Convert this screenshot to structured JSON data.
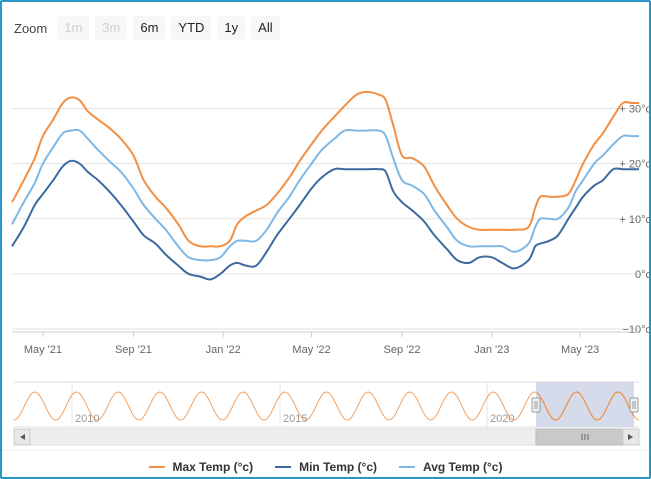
{
  "zoom": {
    "label": "Zoom",
    "buttons": [
      {
        "label": "1m",
        "enabled": false
      },
      {
        "label": "3m",
        "enabled": false
      },
      {
        "label": "6m",
        "enabled": true
      },
      {
        "label": "YTD",
        "enabled": true
      },
      {
        "label": "1y",
        "enabled": true
      },
      {
        "label": "All",
        "enabled": true
      }
    ]
  },
  "colors": {
    "max": "#f28f43",
    "min": "#3d6a9e",
    "avg": "#7db8e6",
    "navigator_mask": "#c7cfe3",
    "frame": "#2a96c8"
  },
  "chart_data": {
    "type": "line",
    "x_ticks": [
      "May '21",
      "Sep '21",
      "Jan '22",
      "May '22",
      "Sep '22",
      "Jan '23",
      "May '23"
    ],
    "y_ticks": [
      "−10°c",
      "0°c",
      "+ 10°c",
      "+ 20°c",
      "+ 30°c"
    ],
    "ylim": [
      -10,
      33
    ],
    "grid": true,
    "legend_position": "bottom-center",
    "series": [
      {
        "name": "Max Temp (°c)",
        "points": [
          [
            "2021-03-20",
            13
          ],
          [
            "2021-04-05",
            17
          ],
          [
            "2021-04-20",
            21
          ],
          [
            "2021-05-01",
            25
          ],
          [
            "2021-05-15",
            28
          ],
          [
            "2021-05-28",
            31
          ],
          [
            "2021-06-08",
            32
          ],
          [
            "2021-06-20",
            31.5
          ],
          [
            "2021-07-01",
            29.5
          ],
          [
            "2021-07-15",
            28
          ],
          [
            "2021-07-30",
            26.5
          ],
          [
            "2021-08-15",
            24.5
          ],
          [
            "2021-09-01",
            21.5
          ],
          [
            "2021-09-15",
            17
          ],
          [
            "2021-10-01",
            14
          ],
          [
            "2021-10-15",
            12
          ],
          [
            "2021-11-01",
            9
          ],
          [
            "2021-11-15",
            6
          ],
          [
            "2021-12-01",
            5
          ],
          [
            "2021-12-15",
            5
          ],
          [
            "2021-12-28",
            5
          ],
          [
            "2022-01-10",
            6
          ],
          [
            "2022-01-20",
            9
          ],
          [
            "2022-02-01",
            10.5
          ],
          [
            "2022-02-15",
            11.5
          ],
          [
            "2022-03-01",
            12.5
          ],
          [
            "2022-03-15",
            14.5
          ],
          [
            "2022-04-01",
            17.5
          ],
          [
            "2022-04-15",
            20.5
          ],
          [
            "2022-05-01",
            23.5
          ],
          [
            "2022-05-15",
            26
          ],
          [
            "2022-06-01",
            28.5
          ],
          [
            "2022-06-15",
            30.5
          ],
          [
            "2022-07-01",
            32.5
          ],
          [
            "2022-07-15",
            33
          ],
          [
            "2022-08-01",
            32.5
          ],
          [
            "2022-08-10",
            31.5
          ],
          [
            "2022-08-20",
            27
          ],
          [
            "2022-09-01",
            21.5
          ],
          [
            "2022-09-15",
            21
          ],
          [
            "2022-10-01",
            19.5
          ],
          [
            "2022-10-15",
            16
          ],
          [
            "2022-11-01",
            12.5
          ],
          [
            "2022-11-15",
            10
          ],
          [
            "2022-12-01",
            8.5
          ],
          [
            "2022-12-15",
            8
          ],
          [
            "2023-01-01",
            8
          ],
          [
            "2023-01-15",
            8
          ],
          [
            "2023-02-01",
            8
          ],
          [
            "2023-02-20",
            8.5
          ],
          [
            "2023-03-01",
            12
          ],
          [
            "2023-03-08",
            14
          ],
          [
            "2023-03-20",
            14
          ],
          [
            "2023-04-01",
            14
          ],
          [
            "2023-04-15",
            14.5
          ],
          [
            "2023-04-25",
            17
          ],
          [
            "2023-05-05",
            20
          ],
          [
            "2023-05-20",
            23.5
          ],
          [
            "2023-06-01",
            25.5
          ],
          [
            "2023-06-15",
            28.5
          ],
          [
            "2023-06-28",
            31
          ],
          [
            "2023-07-10",
            31
          ],
          [
            "2023-07-20",
            31
          ]
        ]
      },
      {
        "name": "Min Temp (°c)",
        "points": [
          [
            "2021-03-20",
            5
          ],
          [
            "2021-04-05",
            8.5
          ],
          [
            "2021-04-20",
            12.5
          ],
          [
            "2021-05-01",
            14.5
          ],
          [
            "2021-05-15",
            17
          ],
          [
            "2021-05-28",
            19.5
          ],
          [
            "2021-06-08",
            20.5
          ],
          [
            "2021-06-20",
            20
          ],
          [
            "2021-07-01",
            18.5
          ],
          [
            "2021-07-15",
            17
          ],
          [
            "2021-07-30",
            15
          ],
          [
            "2021-08-15",
            12.5
          ],
          [
            "2021-09-01",
            9.5
          ],
          [
            "2021-09-15",
            7
          ],
          [
            "2021-10-01",
            5.5
          ],
          [
            "2021-10-15",
            3.5
          ],
          [
            "2021-11-01",
            1.5
          ],
          [
            "2021-11-15",
            0
          ],
          [
            "2021-12-01",
            -0.5
          ],
          [
            "2021-12-15",
            -1
          ],
          [
            "2021-12-28",
            0
          ],
          [
            "2022-01-10",
            1.5
          ],
          [
            "2022-01-20",
            2
          ],
          [
            "2022-02-01",
            1.5
          ],
          [
            "2022-02-15",
            1.5
          ],
          [
            "2022-03-01",
            4
          ],
          [
            "2022-03-15",
            7
          ],
          [
            "2022-04-01",
            10
          ],
          [
            "2022-04-15",
            12.5
          ],
          [
            "2022-05-01",
            15.5
          ],
          [
            "2022-05-15",
            17.5
          ],
          [
            "2022-06-01",
            19
          ],
          [
            "2022-06-15",
            19
          ],
          [
            "2022-07-01",
            19
          ],
          [
            "2022-07-15",
            19
          ],
          [
            "2022-08-01",
            19
          ],
          [
            "2022-08-10",
            18.5
          ],
          [
            "2022-08-20",
            15
          ],
          [
            "2022-09-01",
            13
          ],
          [
            "2022-09-15",
            11.5
          ],
          [
            "2022-10-01",
            9.5
          ],
          [
            "2022-10-15",
            7
          ],
          [
            "2022-11-01",
            4.5
          ],
          [
            "2022-11-15",
            2.5
          ],
          [
            "2022-12-01",
            2
          ],
          [
            "2022-12-15",
            3
          ],
          [
            "2023-01-01",
            3
          ],
          [
            "2023-01-15",
            2
          ],
          [
            "2023-02-01",
            1
          ],
          [
            "2023-02-20",
            2.5
          ],
          [
            "2023-03-01",
            5
          ],
          [
            "2023-03-08",
            5.5
          ],
          [
            "2023-03-20",
            6
          ],
          [
            "2023-04-01",
            7
          ],
          [
            "2023-04-15",
            10
          ],
          [
            "2023-04-25",
            12
          ],
          [
            "2023-05-05",
            14
          ],
          [
            "2023-05-20",
            16
          ],
          [
            "2023-06-01",
            17
          ],
          [
            "2023-06-15",
            19
          ],
          [
            "2023-06-28",
            19
          ],
          [
            "2023-07-10",
            19
          ],
          [
            "2023-07-20",
            19
          ]
        ]
      },
      {
        "name": "Avg Temp (°c)",
        "points": [
          [
            "2021-03-20",
            9
          ],
          [
            "2021-04-05",
            13
          ],
          [
            "2021-04-20",
            16.5
          ],
          [
            "2021-05-01",
            20
          ],
          [
            "2021-05-15",
            23
          ],
          [
            "2021-05-28",
            25.5
          ],
          [
            "2021-06-08",
            26
          ],
          [
            "2021-06-20",
            26
          ],
          [
            "2021-07-01",
            24.5
          ],
          [
            "2021-07-15",
            22.5
          ],
          [
            "2021-07-30",
            20.5
          ],
          [
            "2021-08-15",
            18.5
          ],
          [
            "2021-09-01",
            15.5
          ],
          [
            "2021-09-15",
            12.5
          ],
          [
            "2021-10-01",
            10
          ],
          [
            "2021-10-15",
            8
          ],
          [
            "2021-11-01",
            5
          ],
          [
            "2021-11-15",
            3
          ],
          [
            "2021-12-01",
            2.5
          ],
          [
            "2021-12-15",
            2.5
          ],
          [
            "2021-12-28",
            3
          ],
          [
            "2022-01-10",
            5
          ],
          [
            "2022-01-20",
            6
          ],
          [
            "2022-02-01",
            6
          ],
          [
            "2022-02-15",
            6
          ],
          [
            "2022-03-01",
            8
          ],
          [
            "2022-03-15",
            11
          ],
          [
            "2022-04-01",
            14
          ],
          [
            "2022-04-15",
            17
          ],
          [
            "2022-05-01",
            20
          ],
          [
            "2022-05-15",
            22.5
          ],
          [
            "2022-06-01",
            24.5
          ],
          [
            "2022-06-15",
            26
          ],
          [
            "2022-07-01",
            26
          ],
          [
            "2022-07-15",
            26
          ],
          [
            "2022-08-01",
            26
          ],
          [
            "2022-08-10",
            25
          ],
          [
            "2022-08-20",
            21
          ],
          [
            "2022-09-01",
            17
          ],
          [
            "2022-09-15",
            16
          ],
          [
            "2022-10-01",
            14.5
          ],
          [
            "2022-10-15",
            11.5
          ],
          [
            "2022-11-01",
            8.5
          ],
          [
            "2022-11-15",
            6
          ],
          [
            "2022-12-01",
            5
          ],
          [
            "2022-12-15",
            5
          ],
          [
            "2023-01-01",
            5
          ],
          [
            "2023-01-15",
            5
          ],
          [
            "2023-02-01",
            4
          ],
          [
            "2023-02-20",
            5.5
          ],
          [
            "2023-03-01",
            8.5
          ],
          [
            "2023-03-08",
            10
          ],
          [
            "2023-03-20",
            10
          ],
          [
            "2023-04-01",
            10
          ],
          [
            "2023-04-15",
            12
          ],
          [
            "2023-04-25",
            15
          ],
          [
            "2023-05-05",
            17
          ],
          [
            "2023-05-20",
            20
          ],
          [
            "2023-06-01",
            21.5
          ],
          [
            "2023-06-15",
            23.5
          ],
          [
            "2023-06-28",
            25
          ],
          [
            "2023-07-10",
            25
          ],
          [
            "2023-07-20",
            25
          ]
        ]
      }
    ],
    "navigator": {
      "x_labels": [
        "2010",
        "2015",
        "2020"
      ],
      "selected_range": [
        "2021-03-20",
        "2023-07-20"
      ]
    }
  }
}
